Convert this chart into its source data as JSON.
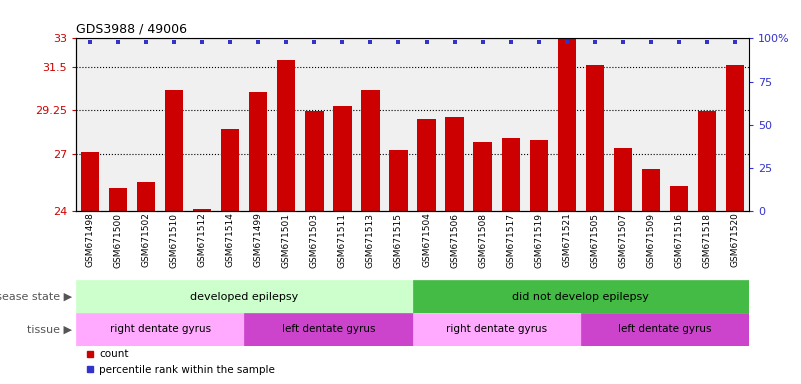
{
  "title": "GDS3988 / 49006",
  "samples": [
    "GSM671498",
    "GSM671500",
    "GSM671502",
    "GSM671510",
    "GSM671512",
    "GSM671514",
    "GSM671499",
    "GSM671501",
    "GSM671503",
    "GSM671511",
    "GSM671513",
    "GSM671515",
    "GSM671504",
    "GSM671506",
    "GSM671508",
    "GSM671517",
    "GSM671519",
    "GSM671521",
    "GSM671505",
    "GSM671507",
    "GSM671509",
    "GSM671516",
    "GSM671518",
    "GSM671520"
  ],
  "bar_values": [
    27.1,
    25.2,
    25.5,
    30.3,
    24.1,
    28.3,
    30.2,
    31.9,
    29.2,
    29.5,
    30.3,
    27.2,
    28.8,
    28.9,
    27.6,
    27.8,
    27.7,
    33.0,
    31.6,
    27.3,
    26.2,
    25.3,
    29.2,
    31.6
  ],
  "ymin": 24,
  "ymax": 33,
  "yticks": [
    24,
    27,
    29.25,
    31.5,
    33
  ],
  "ytick_labels": [
    "24",
    "27",
    "29.25",
    "31.5",
    "33"
  ],
  "y2ticks": [
    0,
    25,
    50,
    75,
    100
  ],
  "y2tick_labels": [
    "0",
    "25",
    "50",
    "75",
    "100%"
  ],
  "bar_color": "#CC0000",
  "dot_color": "#3333CC",
  "groups": [
    {
      "label": "developed epilepsy",
      "start": 0,
      "end": 12,
      "color": "#CCFFCC"
    },
    {
      "label": "did not develop epilepsy",
      "start": 12,
      "end": 24,
      "color": "#44BB44"
    }
  ],
  "tissues": [
    {
      "label": "right dentate gyrus",
      "start": 0,
      "end": 6,
      "color": "#FFAAFF"
    },
    {
      "label": "left dentate gyrus",
      "start": 6,
      "end": 12,
      "color": "#CC44CC"
    },
    {
      "label": "right dentate gyrus",
      "start": 12,
      "end": 18,
      "color": "#FFAAFF"
    },
    {
      "label": "left dentate gyrus",
      "start": 18,
      "end": 24,
      "color": "#CC44CC"
    }
  ],
  "disease_state_label": "disease state",
  "tissue_label": "tissue",
  "legend_count_label": "count",
  "legend_percentile_label": "percentile rank within the sample",
  "dotted_lines": [
    27,
    29.25,
    31.5
  ]
}
